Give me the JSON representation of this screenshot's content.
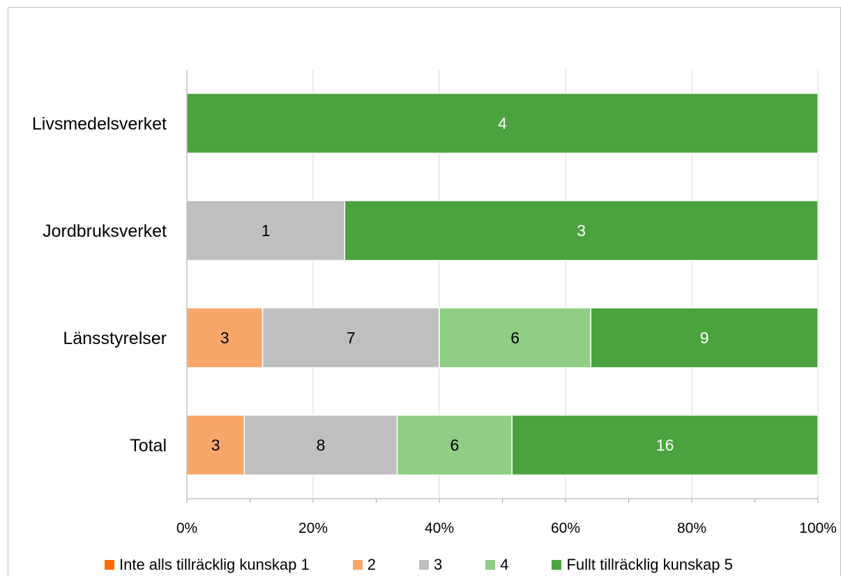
{
  "chart_data": {
    "type": "bar",
    "orientation": "horizontal",
    "stacked": "percent",
    "categories": [
      "Livsmedelsverket",
      "Jordbruksverket",
      "Länsstyrelser",
      "Total"
    ],
    "series": [
      {
        "name": "Inte alls tillräcklig kunskap 1",
        "color": "#FF6A00",
        "values": [
          0,
          0,
          0,
          0
        ]
      },
      {
        "name": "2",
        "color": "#F9A66A",
        "values": [
          0,
          0,
          3,
          3
        ]
      },
      {
        "name": "3",
        "color": "#BFBFBF",
        "values": [
          0,
          1,
          7,
          8
        ]
      },
      {
        "name": "4",
        "color": "#8FCE84",
        "values": [
          0,
          0,
          6,
          6
        ]
      },
      {
        "name": "Fullt tillräcklig kunskap 5",
        "color": "#4BA33F",
        "values": [
          4,
          3,
          9,
          16
        ]
      }
    ],
    "x_ticks": [
      "0%",
      "20%",
      "40%",
      "60%",
      "80%",
      "100%"
    ],
    "xlim": [
      0,
      100
    ],
    "grid": true,
    "legend_position": "bottom",
    "data_labels": true
  }
}
